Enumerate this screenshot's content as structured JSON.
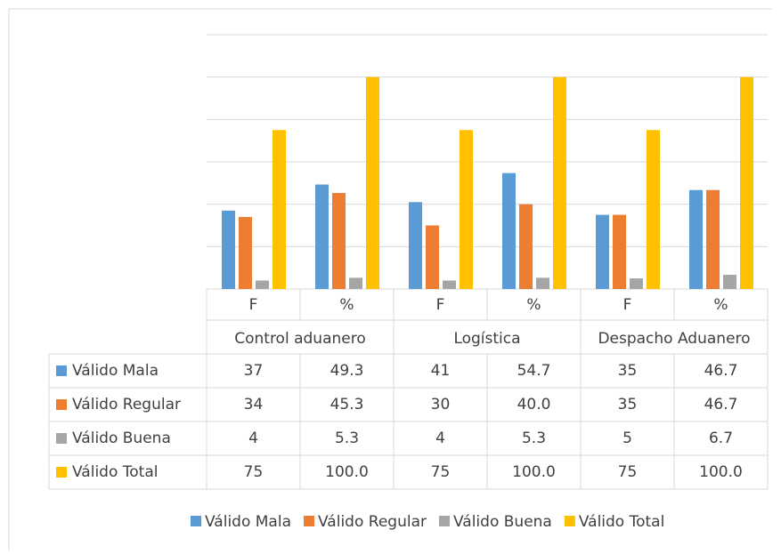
{
  "chart_data": {
    "type": "bar",
    "groups": [
      "Control aduanero",
      "Logística",
      "Despacho Aduanero"
    ],
    "categories": [
      "F",
      "%",
      "F",
      "%",
      "F",
      "%"
    ],
    "series": [
      {
        "name": "Válido Mala",
        "color": "#5b9bd5",
        "values": [
          37,
          49.3,
          41,
          54.7,
          35,
          46.7
        ],
        "value_labels": [
          "37",
          "49.3",
          "41",
          "54.7",
          "35",
          "46.7"
        ]
      },
      {
        "name": "Válido Regular",
        "color": "#ed7d31",
        "values": [
          34,
          45.3,
          30,
          40.0,
          35,
          46.7
        ],
        "value_labels": [
          "34",
          "45.3",
          "30",
          "40.0",
          "35",
          "46.7"
        ]
      },
      {
        "name": "Válido Buena",
        "color": "#a5a5a5",
        "values": [
          4,
          5.3,
          4,
          5.3,
          5,
          6.7
        ],
        "value_labels": [
          "4",
          "5.3",
          "4",
          "5.3",
          "5",
          "6.7"
        ]
      },
      {
        "name": "Válido Total",
        "color": "#ffc000",
        "values": [
          75,
          100.0,
          75,
          100.0,
          75,
          100.0
        ],
        "value_labels": [
          "75",
          "100.0",
          "75",
          "100.0",
          "75",
          "100.0"
        ]
      }
    ],
    "ylim": [
      0,
      120
    ],
    "yticks": [
      0,
      20,
      40,
      60,
      80,
      100,
      120
    ],
    "grid": true,
    "legend": "bottom"
  }
}
